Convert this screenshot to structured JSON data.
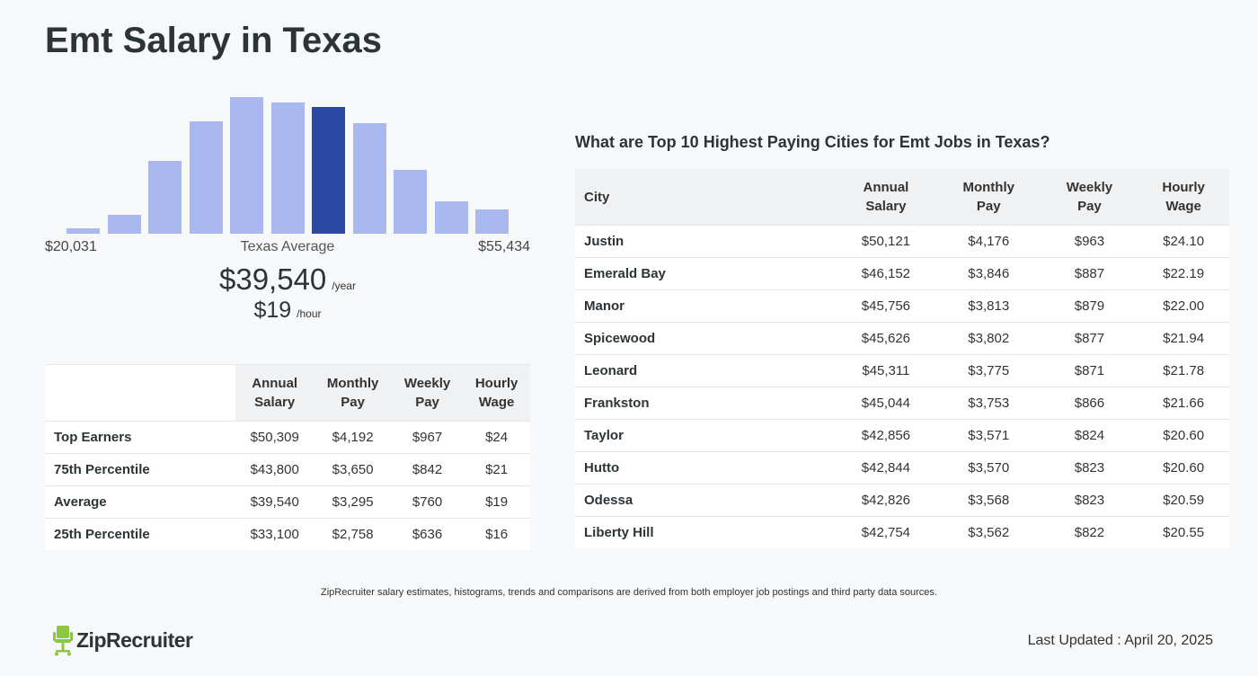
{
  "page": {
    "title": "Emt Salary in Texas"
  },
  "histogram": {
    "min_label": "$20,031",
    "max_label": "$55,434",
    "center_label": "Texas Average",
    "avg_annual": "$39,540",
    "annual_unit": "/year",
    "avg_hourly": "$19",
    "hourly_unit": "/hour",
    "bar_color": "#a9b9f0",
    "highlight_color": "#2b48a3"
  },
  "chart_data": {
    "type": "bar",
    "categories": [
      "1",
      "2",
      "3",
      "4",
      "5",
      "6",
      "7",
      "8",
      "9",
      "10",
      "11"
    ],
    "values": [
      4,
      14,
      53,
      82,
      100,
      96,
      93,
      81,
      47,
      24,
      18
    ],
    "highlight_index": 6,
    "title": "",
    "xlabel": "",
    "ylabel": ""
  },
  "percentile_table": {
    "headers": [
      {
        "line1": "Annual",
        "line2": "Salary"
      },
      {
        "line1": "Monthly",
        "line2": "Pay"
      },
      {
        "line1": "Weekly",
        "line2": "Pay"
      },
      {
        "line1": "Hourly",
        "line2": "Wage"
      }
    ],
    "rows": [
      {
        "label": "Top Earners",
        "annual": "$50,309",
        "monthly": "$4,192",
        "weekly": "$967",
        "hourly": "$24"
      },
      {
        "label": "75th Percentile",
        "annual": "$43,800",
        "monthly": "$3,650",
        "weekly": "$842",
        "hourly": "$21"
      },
      {
        "label": "Average",
        "annual": "$39,540",
        "monthly": "$3,295",
        "weekly": "$760",
        "hourly": "$19"
      },
      {
        "label": "25th Percentile",
        "annual": "$33,100",
        "monthly": "$2,758",
        "weekly": "$636",
        "hourly": "$16"
      }
    ]
  },
  "cities": {
    "heading": "What are Top 10 Highest Paying Cities for Emt Jobs in Texas?",
    "city_header": "City",
    "headers": [
      {
        "line1": "Annual",
        "line2": "Salary"
      },
      {
        "line1": "Monthly",
        "line2": "Pay"
      },
      {
        "line1": "Weekly",
        "line2": "Pay"
      },
      {
        "line1": "Hourly",
        "line2": "Wage"
      }
    ],
    "rows": [
      {
        "city": "Justin",
        "annual": "$50,121",
        "monthly": "$4,176",
        "weekly": "$963",
        "hourly": "$24.10"
      },
      {
        "city": "Emerald Bay",
        "annual": "$46,152",
        "monthly": "$3,846",
        "weekly": "$887",
        "hourly": "$22.19"
      },
      {
        "city": "Manor",
        "annual": "$45,756",
        "monthly": "$3,813",
        "weekly": "$879",
        "hourly": "$22.00"
      },
      {
        "city": "Spicewood",
        "annual": "$45,626",
        "monthly": "$3,802",
        "weekly": "$877",
        "hourly": "$21.94"
      },
      {
        "city": "Leonard",
        "annual": "$45,311",
        "monthly": "$3,775",
        "weekly": "$871",
        "hourly": "$21.78"
      },
      {
        "city": "Frankston",
        "annual": "$45,044",
        "monthly": "$3,753",
        "weekly": "$866",
        "hourly": "$21.66"
      },
      {
        "city": "Taylor",
        "annual": "$42,856",
        "monthly": "$3,571",
        "weekly": "$824",
        "hourly": "$20.60"
      },
      {
        "city": "Hutto",
        "annual": "$42,844",
        "monthly": "$3,570",
        "weekly": "$823",
        "hourly": "$20.60"
      },
      {
        "city": "Odessa",
        "annual": "$42,826",
        "monthly": "$3,568",
        "weekly": "$823",
        "hourly": "$20.59"
      },
      {
        "city": "Liberty Hill",
        "annual": "$42,754",
        "monthly": "$3,562",
        "weekly": "$822",
        "hourly": "$20.55"
      }
    ]
  },
  "footer": {
    "disclaimer": "ZipRecruiter salary estimates, histograms, trends and comparisons are derived from both employer job postings and third party data sources.",
    "logo_text": "ZipRecruiter",
    "logo_icon": "ziprecruiter-chair-icon",
    "logo_color": "#8dc63f",
    "last_updated": "Last Updated : April 20, 2025"
  }
}
